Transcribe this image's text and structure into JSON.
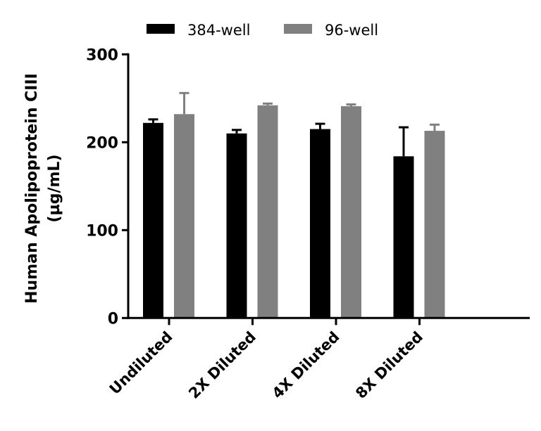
{
  "chart_data": {
    "type": "bar",
    "title": "",
    "xlabel": "",
    "ylabel_lines": [
      "Human Apolipoprotein CIII",
      "(µg/mL)"
    ],
    "ylim": [
      0,
      300
    ],
    "yticks": [
      0,
      100,
      200,
      300
    ],
    "categories": [
      "Undiluted",
      "2X Diluted",
      "4X Diluted",
      "8X Diluted"
    ],
    "series": [
      {
        "name": "384-well",
        "color": "#000000",
        "values": [
          222,
          210,
          215,
          184
        ],
        "errors": [
          4,
          4,
          6,
          33
        ]
      },
      {
        "name": "96-well",
        "color": "#808080",
        "values": [
          232,
          242,
          241,
          213
        ],
        "errors": [
          24,
          2,
          2,
          7
        ]
      }
    ],
    "error_bars": "upper only",
    "grid": false,
    "legend_position": "top"
  }
}
